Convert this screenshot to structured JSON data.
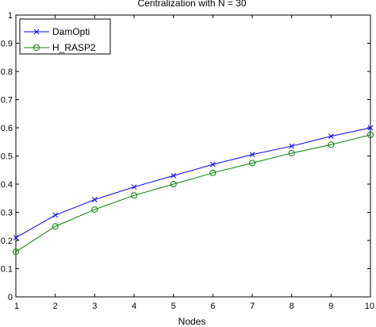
{
  "chart_data": {
    "type": "line",
    "title": "Centralization with N = 30",
    "xlabel": "Nodes",
    "ylabel": "",
    "xlim": [
      1,
      10
    ],
    "ylim": [
      0,
      1
    ],
    "x": [
      1,
      2,
      3,
      4,
      5,
      6,
      7,
      8,
      9,
      10
    ],
    "x_ticks": [
      "1",
      "2",
      "3",
      "4",
      "5",
      "6",
      "7",
      "8",
      "9",
      "10"
    ],
    "y_ticks": [
      "0",
      "0.1",
      "0.2",
      "0.3",
      "0.4",
      "0.5",
      "0.6",
      "0.7",
      "0.8",
      "0.9",
      "1"
    ],
    "grid": false,
    "legend_position": "top-left",
    "series": [
      {
        "name": "DamOpti",
        "color": "#0000ff",
        "marker": "x",
        "values": [
          0.21,
          0.29,
          0.345,
          0.39,
          0.43,
          0.47,
          0.505,
          0.535,
          0.57,
          0.6
        ]
      },
      {
        "name": "H_RASP2",
        "color": "#008000",
        "marker": "circle",
        "values": [
          0.16,
          0.25,
          0.31,
          0.36,
          0.4,
          0.44,
          0.475,
          0.51,
          0.54,
          0.575
        ]
      }
    ]
  }
}
